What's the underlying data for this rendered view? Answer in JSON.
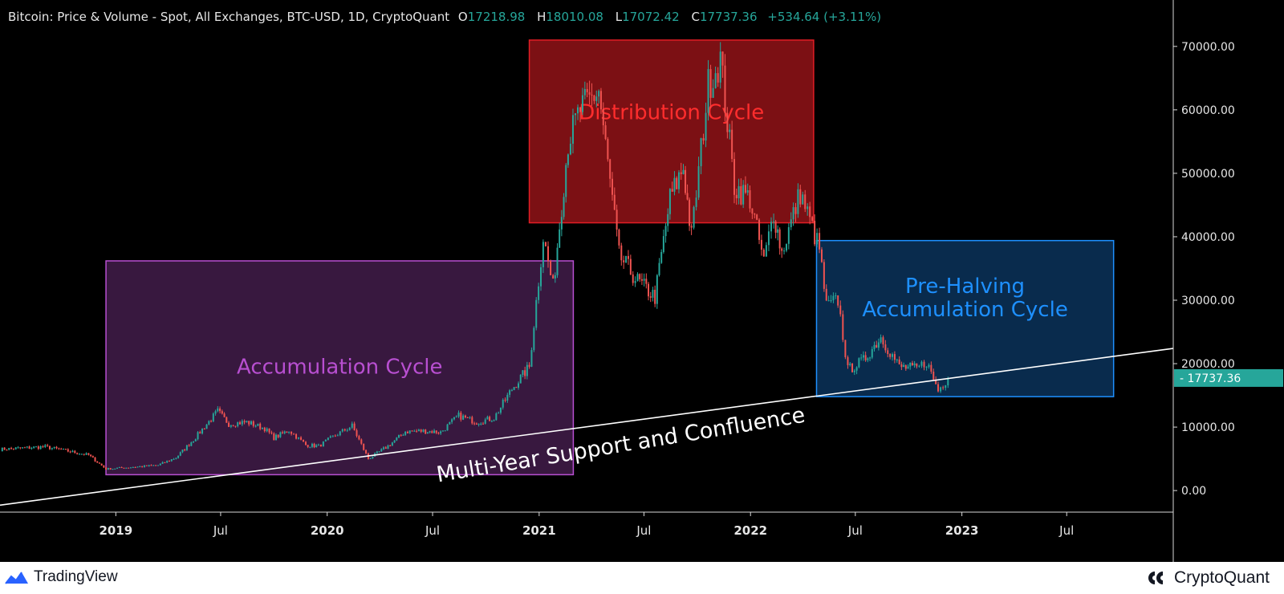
{
  "header": {
    "title": "Bitcoin: Price & Volume - Spot, All Exchanges, BTC-USD, 1D, CryptoQuant",
    "o_label": "O",
    "o_value": "17218.98",
    "h_label": "H",
    "h_value": "18010.08",
    "l_label": "L",
    "l_value": "17072.42",
    "c_label": "C",
    "c_value": "17737.36",
    "change": "+534.64 (+3.11%)"
  },
  "footer": {
    "tradingview_label": "TradingView",
    "cryptoquant_label": "CryptoQuant"
  },
  "colors": {
    "background": "#000000",
    "up": "#26a69a",
    "down": "#ef5350",
    "accumulation": "#b84fd1",
    "distribution": "#e11d25",
    "pre_halving": "#1e90ff",
    "support_line": "#ffffff"
  },
  "chart_data": {
    "type": "line",
    "x_axis": {
      "tick_labels": [
        "2019",
        "Jul",
        "2020",
        "Jul",
        "2021",
        "Jul",
        "2022",
        "Jul",
        "2023",
        "Jul"
      ],
      "tick_dates": [
        "2019-01-01",
        "2019-07-01",
        "2020-01-01",
        "2020-07-01",
        "2021-01-01",
        "2021-07-01",
        "2022-01-01",
        "2022-07-01",
        "2023-01-01",
        "2023-07-01"
      ],
      "range": [
        "2018-06-15",
        "2024-01-01"
      ]
    },
    "y_axis": {
      "tick_labels": [
        "0.00",
        "10000.00",
        "20000.00",
        "30000.00",
        "40000.00",
        "50000.00",
        "60000.00",
        "70000.00"
      ],
      "tick_values": [
        0,
        10000,
        20000,
        30000,
        40000,
        50000,
        60000,
        70000
      ],
      "range": [
        -3400,
        72000
      ],
      "last_price_label": "17737.36",
      "last_price_value": 17737.36
    },
    "series": [
      {
        "style": "candlestick",
        "x": [
          "2018-06-15",
          "2018-09-01",
          "2018-11-15",
          "2018-12-15",
          "2019-01-15",
          "2019-03-15",
          "2019-04-15",
          "2019-05-15",
          "2019-06-26",
          "2019-07-15",
          "2019-08-15",
          "2019-09-15",
          "2019-10-01",
          "2019-10-27",
          "2019-11-25",
          "2019-12-17",
          "2020-01-15",
          "2020-02-13",
          "2020-03-12",
          "2020-04-15",
          "2020-05-15",
          "2020-06-15",
          "2020-07-15",
          "2020-08-15",
          "2020-09-15",
          "2020-10-15",
          "2020-11-15",
          "2020-12-15",
          "2021-01-08",
          "2021-01-25",
          "2021-02-20",
          "2021-03-13",
          "2021-04-14",
          "2021-05-19",
          "2021-06-20",
          "2021-07-20",
          "2021-08-15",
          "2021-09-07",
          "2021-09-21",
          "2021-10-20",
          "2021-11-10",
          "2021-12-04",
          "2021-12-31",
          "2022-01-24",
          "2022-02-10",
          "2022-02-24",
          "2022-03-28",
          "2022-04-30",
          "2022-05-12",
          "2022-06-01",
          "2022-06-18",
          "2022-07-15",
          "2022-08-14",
          "2022-09-15",
          "2022-10-15",
          "2022-11-01",
          "2022-11-21",
          "2022-12-08"
        ],
        "values": [
          6500,
          6900,
          5600,
          3400,
          3600,
          4000,
          5200,
          8000,
          12500,
          10500,
          10800,
          9800,
          8300,
          9500,
          7200,
          7000,
          8700,
          10200,
          5000,
          7000,
          9300,
          9400,
          9200,
          11800,
          10800,
          11400,
          16000,
          19500,
          40000,
          32000,
          55000,
          60000,
          63000,
          37000,
          33000,
          30500,
          46000,
          51000,
          40000,
          64000,
          68000,
          48000,
          46000,
          36000,
          44000,
          37500,
          47000,
          38000,
          29000,
          30000,
          19000,
          20500,
          24200,
          19500,
          19200,
          20300,
          15800,
          17737
        ]
      }
    ],
    "annotations": [
      {
        "label": "Accumulation Cycle",
        "x_start": "2018-12-15",
        "x_end": "2021-03-01",
        "y_start": 2500,
        "y_end": 36200,
        "color": "#b84fd1"
      },
      {
        "label": "Distribution Cycle",
        "x_start": "2020-12-15",
        "x_end": "2022-04-20",
        "y_start": 42200,
        "y_end": 71000,
        "color": "#e11d25"
      },
      {
        "label_lines": [
          "Pre-Halving",
          "Accumulation Cycle"
        ],
        "x_start": "2022-04-25",
        "x_end": "2023-09-20",
        "y_start": 14800,
        "y_end": 39400,
        "color": "#1e90ff"
      }
    ],
    "trendline": {
      "label": "Multi-Year Support and Confluence",
      "from": {
        "x": "2018-06-15",
        "y": -2300
      },
      "to": {
        "x": "2024-01-01",
        "y": 22400
      },
      "color": "#ffffff"
    }
  }
}
